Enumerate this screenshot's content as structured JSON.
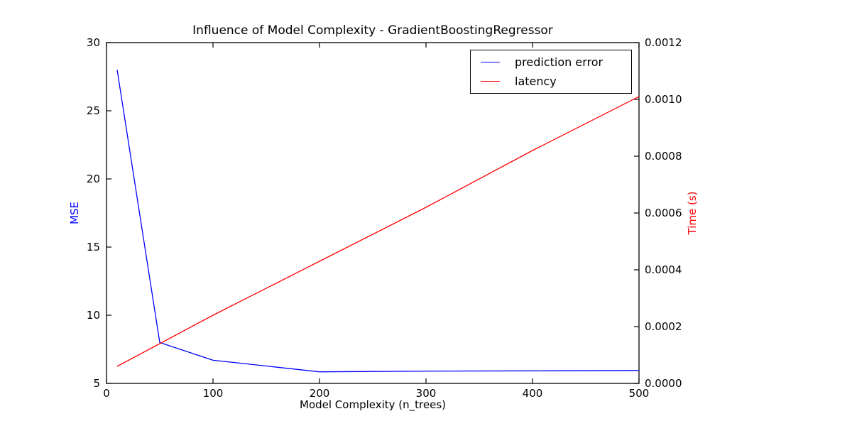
{
  "chart_data": {
    "type": "line",
    "title": "Influence of Model Complexity - GradientBoostingRegressor",
    "xlabel": "Model Complexity (n_trees)",
    "ylabel_left": "MSE",
    "ylabel_right": "Time (s)",
    "ylabel_left_color": "#0000ff",
    "ylabel_right_color": "#ff0000",
    "grid": false,
    "legend_position": "upper right",
    "xlim": [
      0,
      500
    ],
    "x_ticks": [
      "0",
      "100",
      "200",
      "300",
      "400",
      "500"
    ],
    "ylim_left": [
      5,
      30
    ],
    "y_left_ticks": [
      "5",
      "10",
      "15",
      "20",
      "25",
      "30"
    ],
    "ylim_right": [
      0,
      0.0012
    ],
    "y_right_ticks": [
      "0.0000",
      "0.0002",
      "0.0004",
      "0.0006",
      "0.0008",
      "0.0010",
      "0.0012"
    ],
    "series": [
      {
        "name": "prediction error",
        "color": "#0000ff",
        "axis": "left",
        "x": [
          10,
          50,
          100,
          200,
          300,
          400,
          500
        ],
        "y": [
          28.0,
          8.0,
          6.7,
          5.85,
          5.9,
          5.92,
          5.95
        ]
      },
      {
        "name": "latency",
        "color": "#ff0000",
        "axis": "right",
        "x": [
          10,
          50,
          100,
          200,
          300,
          400,
          500
        ],
        "y": [
          6e-05,
          0.00014,
          0.00024,
          0.00043,
          0.00062,
          0.00082,
          0.00101
        ]
      }
    ]
  }
}
